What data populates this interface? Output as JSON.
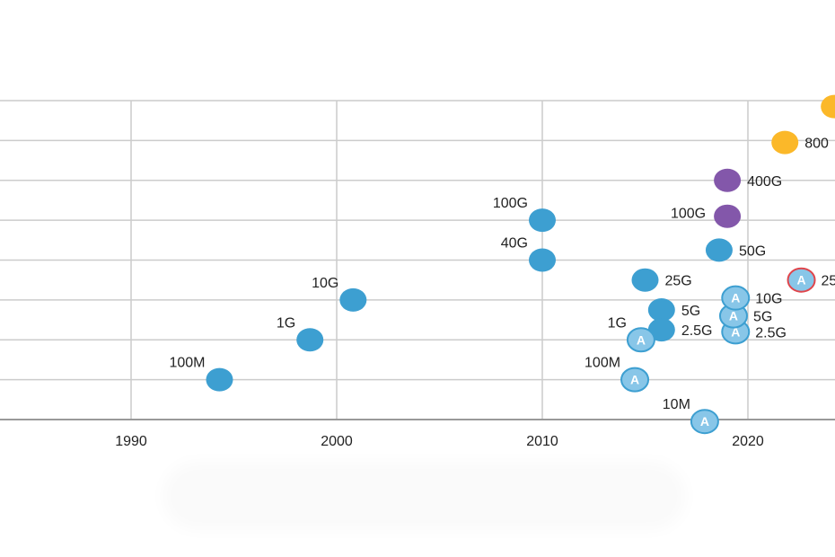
{
  "chart_data": {
    "type": "scatter",
    "title": "",
    "xlabel": "",
    "ylabel": "",
    "xlim": [
      1983,
      2024
    ],
    "ylim": [
      0,
      8
    ],
    "grid": true,
    "x_ticks": [
      1990,
      2000,
      2010,
      2020
    ],
    "colors": {
      "blue": "#3d9fd1",
      "purple": "#8357aa",
      "orange": "#fbb829",
      "automotive_fill": "#88c6e8",
      "automotive_edge": "#3d9fd1",
      "automotive_edge_red": "#e0454b",
      "grid": "#cccccc",
      "axis": "#999999"
    },
    "points": [
      {
        "x": 1994.3,
        "y": 1.0,
        "label": "100M",
        "color": "blue",
        "label_pos": "top-left"
      },
      {
        "x": 1998.7,
        "y": 2.0,
        "label": "1G",
        "color": "blue",
        "label_pos": "top-left"
      },
      {
        "x": 2000.8,
        "y": 3.0,
        "label": "10G",
        "color": "blue",
        "label_pos": "top-left"
      },
      {
        "x": 2010.0,
        "y": 4.0,
        "label": "40G",
        "color": "blue",
        "label_pos": "top-left"
      },
      {
        "x": 2010.0,
        "y": 5.0,
        "label": "100G",
        "color": "blue",
        "label_pos": "top-left"
      },
      {
        "x": 2015.0,
        "y": 3.5,
        "label": "25G",
        "color": "blue",
        "label_pos": "right"
      },
      {
        "x": 2015.8,
        "y": 2.75,
        "label": "5G",
        "color": "blue",
        "label_pos": "right"
      },
      {
        "x": 2015.8,
        "y": 2.25,
        "label": "2.5G",
        "color": "blue",
        "label_pos": "right"
      },
      {
        "x": 2018.6,
        "y": 4.25,
        "label": "50G",
        "color": "blue",
        "label_pos": "right"
      },
      {
        "x": 2019.0,
        "y": 5.1,
        "label": "100G",
        "color": "purple",
        "label_pos": "left"
      },
      {
        "x": 2019.0,
        "y": 6.0,
        "label": "400G",
        "color": "purple",
        "label_pos": "right"
      },
      {
        "x": 2021.8,
        "y": 6.95,
        "label": "800",
        "color": "orange",
        "label_pos": "right"
      },
      {
        "x": 2024.2,
        "y": 7.85,
        "label": "",
        "color": "orange",
        "label_pos": "none"
      }
    ],
    "automotive_points": [
      {
        "x": 2017.9,
        "y": -0.05,
        "label": "10M",
        "label_pos": "top-left",
        "edge": "blue"
      },
      {
        "x": 2014.5,
        "y": 1.0,
        "label": "100M",
        "label_pos": "top-left",
        "edge": "blue"
      },
      {
        "x": 2014.8,
        "y": 2.0,
        "label": "1G",
        "label_pos": "top-left",
        "edge": "blue"
      },
      {
        "x": 2019.4,
        "y": 2.2,
        "label": "2.5G",
        "label_pos": "right",
        "edge": "blue"
      },
      {
        "x": 2019.3,
        "y": 2.6,
        "label": "5G",
        "label_pos": "right",
        "edge": "blue"
      },
      {
        "x": 2019.4,
        "y": 3.05,
        "label": "10G",
        "label_pos": "right",
        "edge": "blue"
      },
      {
        "x": 2022.6,
        "y": 3.5,
        "label": "25",
        "label_pos": "right",
        "edge": "red"
      }
    ],
    "marker_letter": "A"
  }
}
